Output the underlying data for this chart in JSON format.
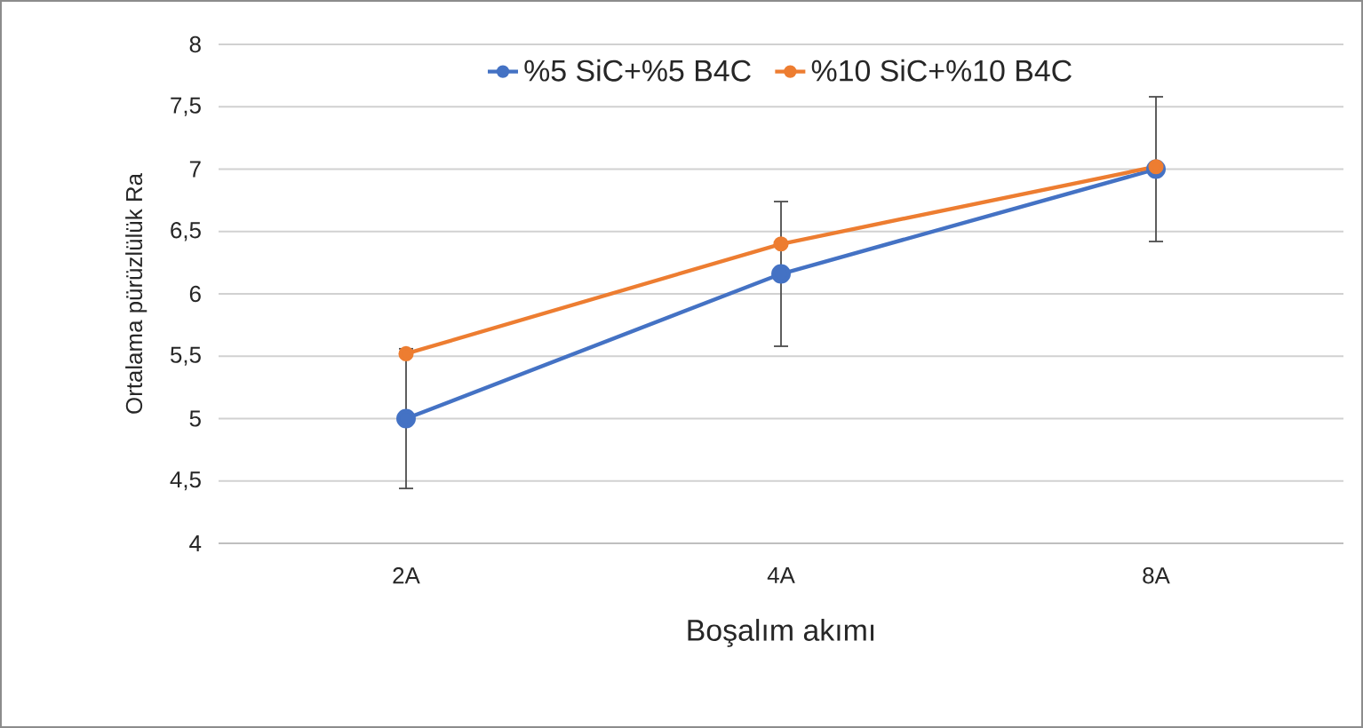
{
  "chart_data": {
    "type": "line",
    "xlabel": "Boşalım akımı",
    "ylabel": "Ortalama pürüzlülük Ra",
    "categories": [
      "2A",
      "4A",
      "8A"
    ],
    "series": [
      {
        "name": "%5 SiC+%5 B4C",
        "color": "#4472c4",
        "values": [
          5.0,
          6.16,
          7.0
        ],
        "errors": [
          0.56,
          0.58,
          0.58
        ]
      },
      {
        "name": "%10 SiC+%10 B4C",
        "color": "#ed7d31",
        "values": [
          5.52,
          6.4,
          7.02
        ]
      }
    ],
    "ylim": [
      4,
      8
    ],
    "yticks": [
      4,
      {
        "value": 4.5,
        "label": "4,5"
      },
      5,
      {
        "value": 5.5,
        "label": "5,5"
      },
      6,
      {
        "value": 6.5,
        "label": "6,5"
      },
      7,
      {
        "value": 7.5,
        "label": "7,5"
      },
      8
    ],
    "grid": "y",
    "legend": "top",
    "marker": "circle",
    "line_style": "solid"
  }
}
